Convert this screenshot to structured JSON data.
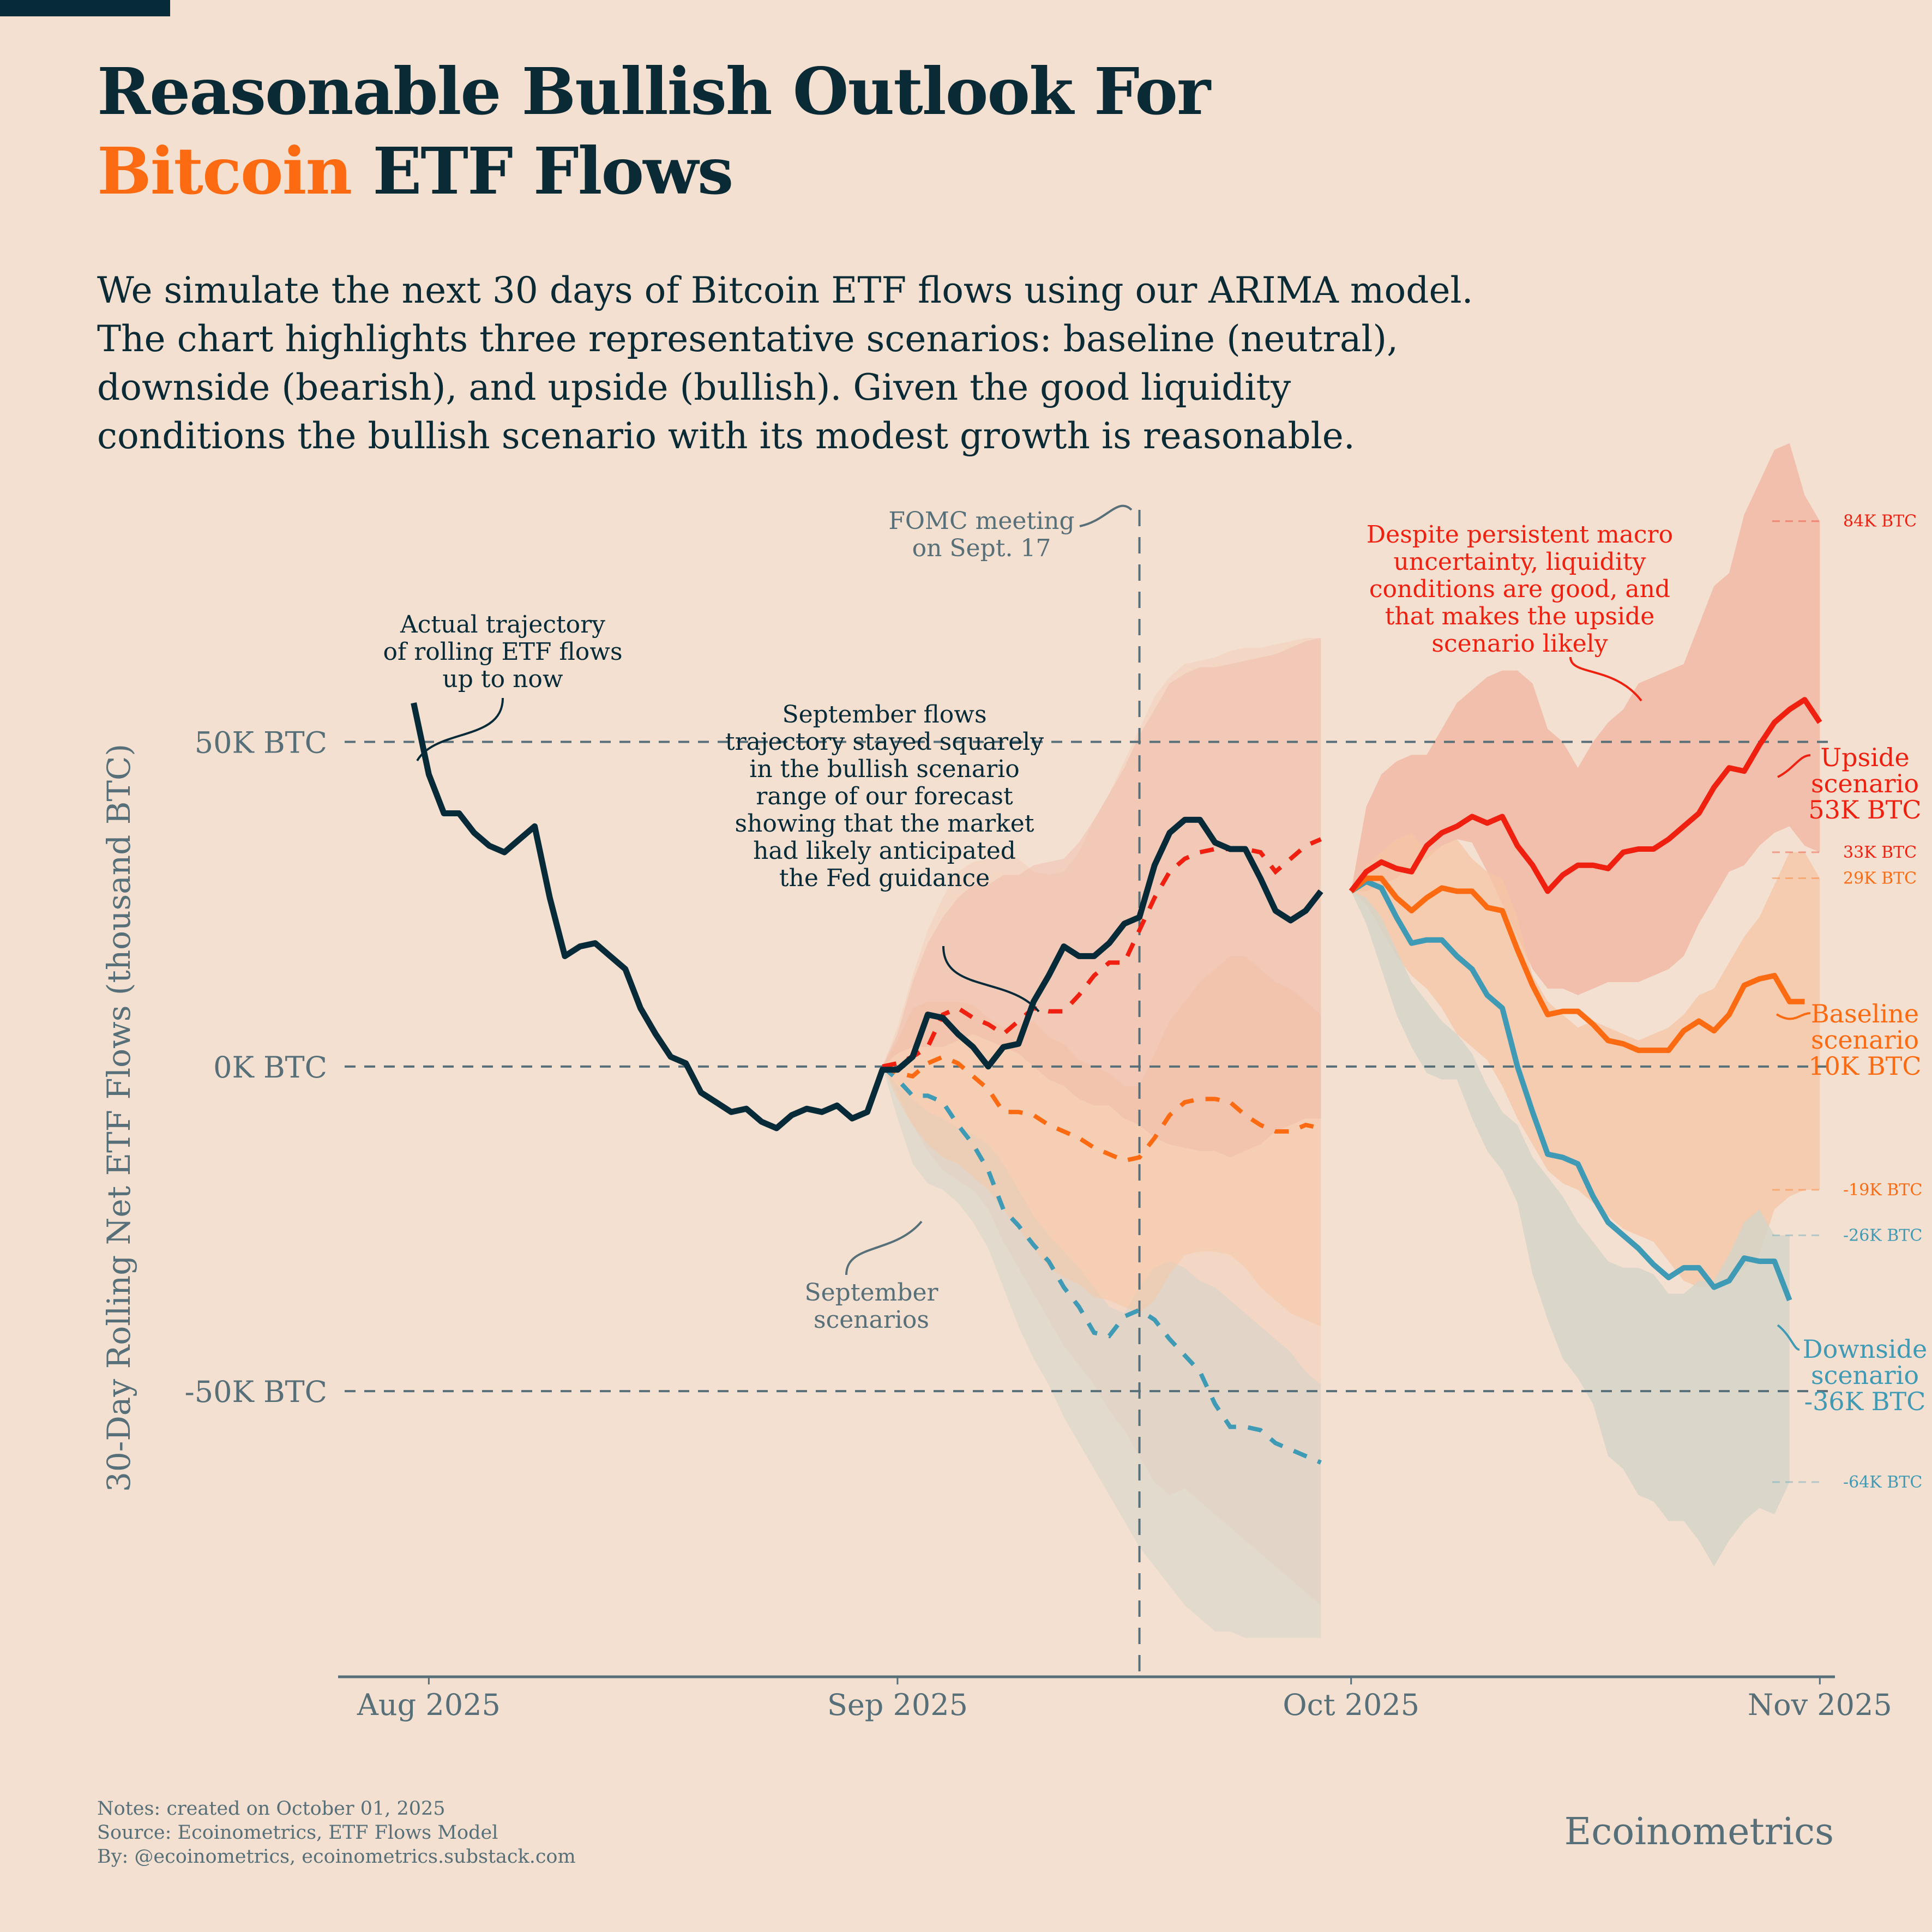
{
  "header": {
    "title_line1": "Reasonable Bullish Outlook For",
    "title_accent": "Bitcoin",
    "title_line2_rest": " ETF Flows",
    "subtitle_lines": [
      "We simulate the next 30 days of Bitcoin ETF flows using our ARIMA model.",
      "The chart highlights three representative scenarios: baseline (neutral),",
      "downside (bearish), and upside (bullish). Given the good liquidity",
      "conditions the bullish scenario with its modest growth is reasonable."
    ]
  },
  "colors": {
    "background": "#f3e0d0",
    "actual": "#062a38",
    "upside": "#f02010",
    "baseline": "#fc6a12",
    "downside": "#3f9ab5",
    "grid": "#566f78",
    "upside_band": "#f0b9a6",
    "baseline_band": "#f6c6a4",
    "downside_band": "#d3d5c8"
  },
  "footer": {
    "notes": "Notes: created on October 01, 2025",
    "source": "Source: Ecoinometrics, ETF Flows Model",
    "by": "By: @ecoinometrics, ecoinometrics.substack.com",
    "brand": "Ecoinometrics"
  },
  "chart_data": {
    "type": "line",
    "title": "Reasonable Bullish Outlook For Bitcoin ETF Flows",
    "xlabel": "",
    "ylabel": "30-Day Rolling Net ETF Flows (thousand BTC)",
    "xlim": [
      "2025-07-26",
      "2025-11-02"
    ],
    "ylim": [
      -94,
      87
    ],
    "x_ticks": [
      {
        "date": "2025-08-01",
        "label": "Aug 2025"
      },
      {
        "date": "2025-09-01",
        "label": "Sep 2025"
      },
      {
        "date": "2025-10-01",
        "label": "Oct 2025"
      },
      {
        "date": "2025-11-01",
        "label": "Nov 2025"
      }
    ],
    "y_gridlines": [
      {
        "value": 50,
        "label": "50K BTC"
      },
      {
        "value": 0,
        "label": "0K BTC"
      },
      {
        "value": -50,
        "label": "-50K BTC"
      }
    ],
    "vline": {
      "date": "2025-09-17",
      "label_lines": [
        "FOMC meeting",
        "on Sept. 17"
      ]
    },
    "actual": {
      "name": "Actual trajectory",
      "start": "2025-07-31",
      "values": [
        56,
        45,
        39,
        39,
        36,
        34,
        33,
        35,
        37,
        26,
        17,
        18.5,
        19,
        17,
        15,
        9,
        5,
        1.5,
        0.5,
        -4,
        -5.5,
        -7,
        -6.5,
        -8.5,
        -9.5,
        -7.5,
        -6.5,
        -7,
        -6,
        -8,
        -7,
        -0.5,
        -0.5,
        1.5,
        8,
        7.5,
        5,
        3,
        0,
        3,
        3.5,
        10,
        14,
        18.5,
        17,
        17,
        19,
        22,
        23,
        31,
        36,
        38,
        38,
        34.5,
        33.5,
        33.5,
        29,
        24,
        22.5,
        24,
        27
      ]
    },
    "september_scenarios": {
      "start": "2025-08-31",
      "upside": [
        0,
        0.5,
        1.5,
        3,
        8,
        9,
        7.5,
        6.5,
        5,
        7,
        9,
        8.5,
        8.5,
        11,
        14,
        16,
        16,
        21,
        26,
        30,
        32,
        33,
        33.5,
        33.5,
        33.5,
        33,
        30,
        32,
        34,
        35
      ],
      "baseline": [
        0,
        -1,
        -1.5,
        0.5,
        1.5,
        0.5,
        -1.5,
        -3.5,
        -7,
        -7,
        -7.5,
        -9,
        -10,
        -11,
        -12.5,
        -13.5,
        -14.5,
        -14,
        -11,
        -7.5,
        -5.5,
        -5,
        -5,
        -5.5,
        -7.5,
        -9,
        -10,
        -10,
        -9,
        -9.5
      ],
      "downside": [
        0,
        -2,
        -4.5,
        -4.5,
        -5.5,
        -9,
        -12,
        -16,
        -22,
        -24.5,
        -27.5,
        -30,
        -34,
        -37,
        -41,
        -41.5,
        -38.5,
        -37.5,
        -39,
        -42,
        -44.5,
        -47,
        -52,
        -55.5,
        -55.5,
        -56,
        -58,
        -59,
        -60,
        -61
      ],
      "band_outer": {
        "upper": [
          0,
          6,
          14,
          21,
          26,
          30,
          31.5,
          32,
          33,
          32,
          30,
          29.5,
          30,
          33,
          38,
          42,
          47,
          52,
          57,
          60,
          62,
          62.5,
          63,
          64,
          64.5,
          64.5,
          65,
          65.5,
          66,
          66
        ],
        "lower": [
          0,
          -4,
          -9,
          -13,
          -16,
          -17.5,
          -19,
          -22,
          -27,
          -31,
          -35,
          -39,
          -43,
          -46,
          -49,
          -53,
          -56,
          -60,
          -64,
          -66,
          -65,
          -67,
          -69,
          -71,
          -73,
          -75,
          -77,
          -79,
          -81,
          -83
        ]
      },
      "band_upside": {
        "upper": [
          0,
          5,
          13,
          19,
          23,
          26,
          28,
          28,
          29.5,
          29.5,
          31,
          31.5,
          32,
          34.5,
          38,
          42,
          46,
          51,
          55,
          59,
          60.5,
          61.5,
          61.5,
          62,
          62.5,
          63,
          63.5,
          64.5,
          65.5,
          66
        ],
        "lower": [
          0,
          2,
          3,
          3,
          3,
          4,
          5,
          4,
          3,
          2,
          0,
          -2,
          -3,
          -5,
          -6,
          -6,
          -8,
          -9,
          -11,
          -12,
          -12.5,
          -13,
          -13,
          -14,
          -13,
          -12,
          -10,
          -9,
          -8,
          -8
        ]
      },
      "band_baseline": {
        "upper": [
          0,
          4,
          9,
          10,
          10,
          10,
          9.5,
          7.5,
          6,
          6.5,
          7,
          4.5,
          3.5,
          1,
          0,
          -1,
          -3,
          -3,
          2,
          7,
          10,
          13,
          15,
          17,
          17,
          15,
          13,
          12,
          10,
          8
        ],
        "lower": [
          0,
          -5,
          -9,
          -12,
          -14,
          -15,
          -17,
          -19,
          -22,
          -25,
          -28,
          -31,
          -32.5,
          -33.5,
          -35.5,
          -36,
          -37,
          -38,
          -36,
          -32,
          -29,
          -28.5,
          -28.5,
          -29,
          -31,
          -34,
          -36,
          -38,
          -39,
          -40
        ]
      },
      "band_downside": {
        "upper": [
          0,
          -3,
          -5,
          -7,
          -8,
          -9.5,
          -10.5,
          -12,
          -15,
          -19,
          -23,
          -26,
          -28.5,
          -31,
          -34,
          -37,
          -38,
          -34,
          -31,
          -30,
          -31,
          -33,
          -34,
          -36,
          -38,
          -40,
          -42,
          -44,
          -47,
          -49
        ],
        "lower": [
          0,
          -8,
          -15,
          -18,
          -19,
          -21,
          -24,
          -28,
          -34,
          -40,
          -45,
          -49,
          -54,
          -58,
          -62,
          -66,
          -70,
          -74,
          -77,
          -80,
          -83,
          -85,
          -87,
          -87,
          -88,
          -88,
          -88,
          -88,
          -88,
          -88
        ]
      }
    },
    "october_scenarios": {
      "start": "2025-10-01",
      "upside": {
        "name": "Upside scenario",
        "end_label": "53K BTC",
        "values": [
          27,
          30,
          31.5,
          30.5,
          30,
          34,
          36,
          37,
          38.5,
          37.5,
          38.5,
          34,
          31,
          27,
          29.5,
          31,
          31,
          30.5,
          33,
          33.5,
          33.5,
          35,
          37,
          39,
          43,
          46,
          45.5,
          49.5,
          53,
          55,
          56.5,
          53
        ]
      },
      "baseline": {
        "name": "Baseline scenario",
        "end_label": "10K BTC",
        "values": [
          27,
          29,
          29,
          26,
          24,
          26,
          27.5,
          27,
          27,
          24.5,
          24,
          18,
          12.5,
          8,
          8.5,
          8.5,
          6.5,
          4,
          3.5,
          2.5,
          2.5,
          2.5,
          5.5,
          7,
          5.5,
          8,
          12.5,
          13.5,
          14,
          10,
          10
        ]
      },
      "downside": {
        "name": "Downside scenario",
        "end_label": "-36K BTC",
        "values": [
          27,
          28.5,
          27.5,
          23,
          19,
          19.5,
          19.5,
          17,
          15,
          11,
          9,
          0,
          -7,
          -13.5,
          -14,
          -15,
          -20,
          -24,
          -26,
          -28,
          -30.5,
          -32.5,
          -31,
          -31,
          -34,
          -33,
          -29.5,
          -30,
          -30,
          -36
        ]
      },
      "band_upside": {
        "upper": [
          27,
          40,
          45,
          47,
          48,
          48,
          52,
          56,
          58,
          60,
          61,
          61,
          59,
          52,
          50,
          46,
          50,
          53,
          55,
          59,
          60,
          61,
          62,
          68,
          74,
          76,
          85,
          90,
          95,
          96,
          88,
          84
        ],
        "lower": [
          27,
          27,
          28,
          29,
          31,
          32,
          34,
          35,
          34.5,
          30,
          25,
          20,
          15,
          12,
          12,
          11,
          12,
          13,
          13,
          13,
          14,
          15,
          17,
          22,
          26,
          30,
          31,
          34,
          36,
          37,
          34,
          33
        ]
      },
      "band_baseline": {
        "upper": [
          27,
          31,
          33,
          35,
          36,
          33,
          34,
          35,
          32,
          30,
          29,
          23,
          14,
          10,
          8,
          6,
          7,
          6,
          5,
          4,
          5,
          6,
          8,
          11,
          12,
          16,
          20,
          23,
          28,
          33,
          33,
          29
        ],
        "lower": [
          27,
          25,
          21,
          17,
          14,
          12,
          9,
          5,
          3,
          1,
          -3,
          -8,
          -12,
          -16,
          -18,
          -19,
          -21,
          -23,
          -25,
          -26,
          -27,
          -30,
          -33,
          -34,
          -34,
          -33,
          -31,
          -29,
          -22,
          -20,
          -19,
          -19
        ]
      },
      "band_downside": {
        "upper": [
          27,
          26,
          23,
          18,
          13,
          10,
          7,
          5,
          2,
          -3,
          -7,
          -9,
          -14,
          -17,
          -20,
          -24,
          -27,
          -30,
          -31,
          -31,
          -32,
          -35,
          -35,
          -33,
          -33,
          -29,
          -24,
          -22,
          -26,
          -26
        ],
        "lower": [
          27,
          22,
          15,
          8,
          3,
          -1,
          -2,
          -2,
          -8,
          -13,
          -16,
          -21,
          -32,
          -39,
          -45,
          -48,
          -52,
          -60,
          -62,
          -66,
          -67,
          -70,
          -70,
          -73,
          -77,
          -73,
          -70,
          -68,
          -69,
          -64
        ]
      }
    },
    "right_labels": [
      {
        "value": 84,
        "label": "84K BTC",
        "series": "upside"
      },
      {
        "value": 33,
        "label": "33K BTC",
        "series": "upside"
      },
      {
        "value": 29,
        "label": "29K BTC",
        "series": "baseline"
      },
      {
        "value": -19,
        "label": "-19K BTC",
        "series": "baseline"
      },
      {
        "value": -26,
        "label": "-26K BTC",
        "series": "downside"
      },
      {
        "value": -64,
        "label": "-64K BTC",
        "series": "downside"
      }
    ],
    "annotations": [
      {
        "id": "actual-note",
        "lines": [
          "Actual trajectory",
          "of rolling ETF flows",
          "up to now"
        ],
        "color": "actual"
      },
      {
        "id": "september-note",
        "lines": [
          "September flows",
          "trajectory stayed squarely",
          "in the bullish scenario",
          "range of our forecast",
          "showing that the market",
          "had likely anticipated",
          "the Fed guidance"
        ],
        "color": "actual"
      },
      {
        "id": "sept-scenarios-note",
        "lines": [
          "September",
          "scenarios"
        ],
        "color": "grid"
      },
      {
        "id": "macro-note",
        "lines": [
          "Despite persistent macro",
          "uncertainty, liquidity",
          "conditions are good, and",
          "that makes the upside",
          "scenario likely"
        ],
        "color": "upside"
      }
    ],
    "end_labels": {
      "upside": [
        "Upside",
        "scenario",
        "53K BTC"
      ],
      "baseline": [
        "Baseline",
        "scenario",
        "10K BTC"
      ],
      "downside": [
        "Downside",
        "scenario",
        "-36K BTC"
      ]
    }
  }
}
